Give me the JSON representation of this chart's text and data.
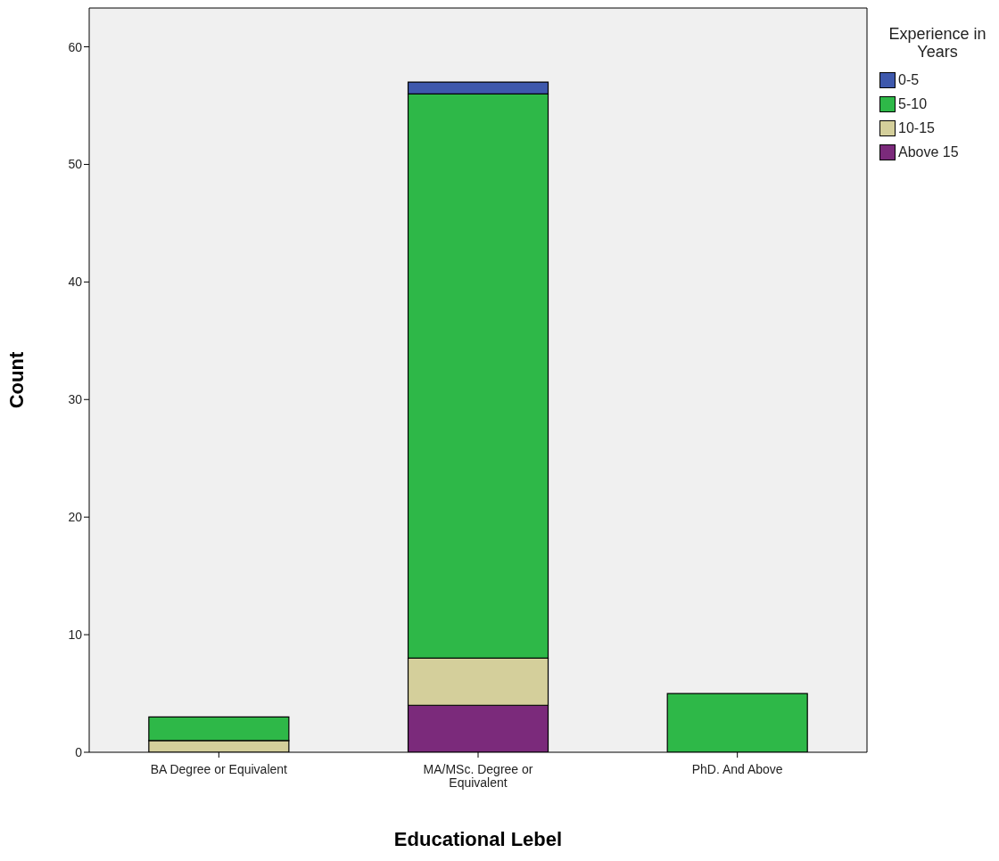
{
  "chart_data": {
    "type": "bar",
    "stacked": true,
    "xlabel": "Educational Lebel",
    "ylabel": "Count",
    "legend_title": "Experience in Years",
    "categories": [
      "BA Degree or Equivalent",
      "MA/MSc. Degree or Equivalent",
      "PhD. And Above"
    ],
    "series": [
      {
        "name": "Above 15",
        "color": "#7b2a7b",
        "values": [
          0,
          4,
          0
        ]
      },
      {
        "name": "10-15",
        "color": "#d4cf9b",
        "values": [
          1,
          4,
          0
        ]
      },
      {
        "name": "5-10",
        "color": "#2eb848",
        "values": [
          2,
          48,
          5
        ]
      },
      {
        "name": "0-5",
        "color": "#3e58ac",
        "values": [
          0,
          1,
          0
        ]
      }
    ],
    "ylim": [
      0,
      63.3
    ],
    "yticks": [
      0,
      10,
      20,
      30,
      40,
      50,
      60
    ],
    "grid": false,
    "legend": "top right"
  }
}
